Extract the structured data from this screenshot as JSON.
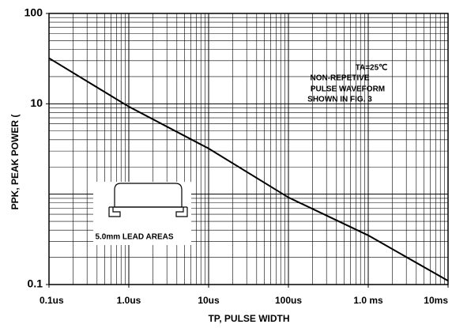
{
  "chart_data": {
    "type": "line",
    "y_label": "PPK, PEAK POWER (",
    "x_label": "TP, PULSE WIDTH",
    "annotations": [
      "TA=25℃",
      "NON-REPETIVE",
      "PULSE WAVEFORM",
      "SHOWN IN FIG. 3"
    ],
    "inset_label": "5.0mm LEAD AREAS",
    "x_log": true,
    "y_log": true,
    "grid": true,
    "xlim": [
      0.1,
      10000
    ],
    "ylim": [
      0.1,
      100
    ],
    "xticks": [
      {
        "value": 0.1,
        "label": "0.1us"
      },
      {
        "value": 1,
        "label": "1.0us"
      },
      {
        "value": 10,
        "label": "10us"
      },
      {
        "value": 100,
        "label": "100us"
      },
      {
        "value": 1000,
        "label": "1.0    ms"
      },
      {
        "value": 10000,
        "label": "10ms"
      }
    ],
    "yticks": [
      0.1,
      10,
      100
    ],
    "series": [
      {
        "color": "#000000",
        "x": [
          0.1,
          1,
          10,
          100,
          1000,
          10000
        ],
        "values": [
          32,
          9.3,
          3.2,
          0.92,
          0.35,
          0.11
        ]
      }
    ]
  }
}
